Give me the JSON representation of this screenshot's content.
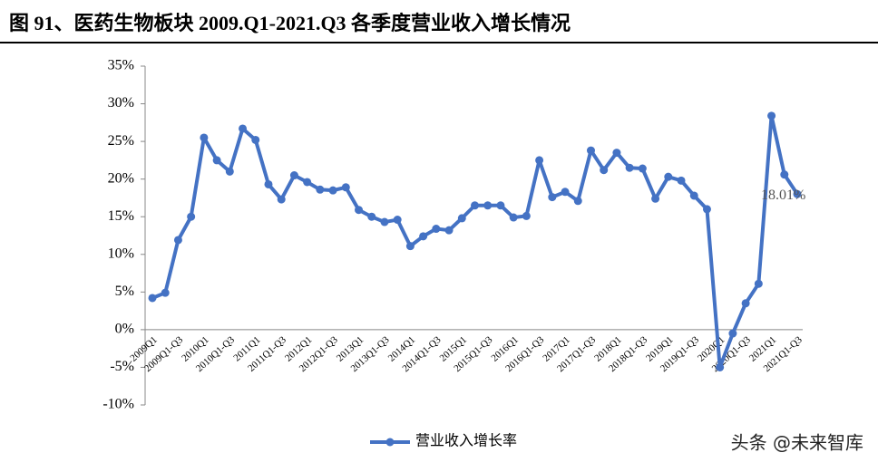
{
  "chart_data": {
    "type": "line",
    "title": "图 91、医药生物板块 2009.Q1-2021.Q3 各季度营业收入增长情况",
    "categories": [
      "2009Q1",
      null,
      "2009Q1-Q3",
      null,
      "2010Q1",
      null,
      "2010Q1-Q3",
      null,
      "2011Q1",
      null,
      "2011Q1-Q3",
      null,
      "2012Q1",
      null,
      "2012Q1-Q3",
      null,
      "2013Q1",
      null,
      "2013Q1-Q3",
      null,
      "2014Q1",
      null,
      "2014Q1-Q3",
      null,
      "2015Q1",
      null,
      "2015Q1-Q3",
      null,
      "2016Q1",
      null,
      "2016Q1-Q3",
      null,
      "2017Q1",
      null,
      "2017Q1-Q3",
      null,
      "2018Q1",
      null,
      "2018Q1-Q3",
      null,
      "2019Q1",
      null,
      "2019Q1-Q3",
      null,
      "2020Q1",
      null,
      "2020Q1-Q3",
      null,
      "2021Q1",
      null,
      "2021Q1-Q3"
    ],
    "series": [
      {
        "name": "营业收入增长率",
        "color": "#4472c4",
        "values": [
          4.2,
          4.9,
          11.9,
          15.0,
          25.5,
          22.5,
          21.0,
          26.7,
          25.2,
          19.3,
          17.3,
          20.5,
          19.6,
          18.6,
          18.5,
          18.9,
          15.9,
          15.0,
          14.3,
          14.6,
          11.1,
          12.4,
          13.4,
          13.2,
          14.8,
          16.5,
          16.5,
          16.5,
          14.9,
          15.1,
          22.5,
          17.6,
          18.3,
          17.1,
          23.8,
          21.2,
          23.5,
          21.5,
          21.4,
          17.4,
          20.3,
          19.8,
          17.8,
          16.0,
          -5.0,
          -0.5,
          3.5,
          6.1,
          28.4,
          20.6,
          18.01
        ],
        "value_labels": [
          null,
          null,
          null,
          null,
          null,
          null,
          null,
          null,
          null,
          null,
          null,
          null,
          null,
          null,
          null,
          null,
          null,
          null,
          null,
          null,
          null,
          null,
          null,
          null,
          null,
          null,
          null,
          null,
          null,
          null,
          null,
          null,
          null,
          null,
          null,
          null,
          null,
          null,
          null,
          null,
          null,
          null,
          null,
          null,
          null,
          null,
          null,
          null,
          null,
          null,
          "18.01%"
        ]
      }
    ],
    "ylim": [
      -10,
      35
    ],
    "yticks": [
      {
        "value": -10,
        "label": "-10%"
      },
      {
        "value": -5,
        "label": "-5%"
      },
      {
        "value": 0,
        "label": "0%"
      },
      {
        "value": 5,
        "label": "5%"
      },
      {
        "value": 10,
        "label": "10%"
      },
      {
        "value": 15,
        "label": "15%"
      },
      {
        "value": 20,
        "label": "20%"
      },
      {
        "value": 25,
        "label": "25%"
      },
      {
        "value": 30,
        "label": "30%"
      },
      {
        "value": 35,
        "label": "35%"
      }
    ],
    "grid": false,
    "watermark": "头条 @未来智库"
  }
}
